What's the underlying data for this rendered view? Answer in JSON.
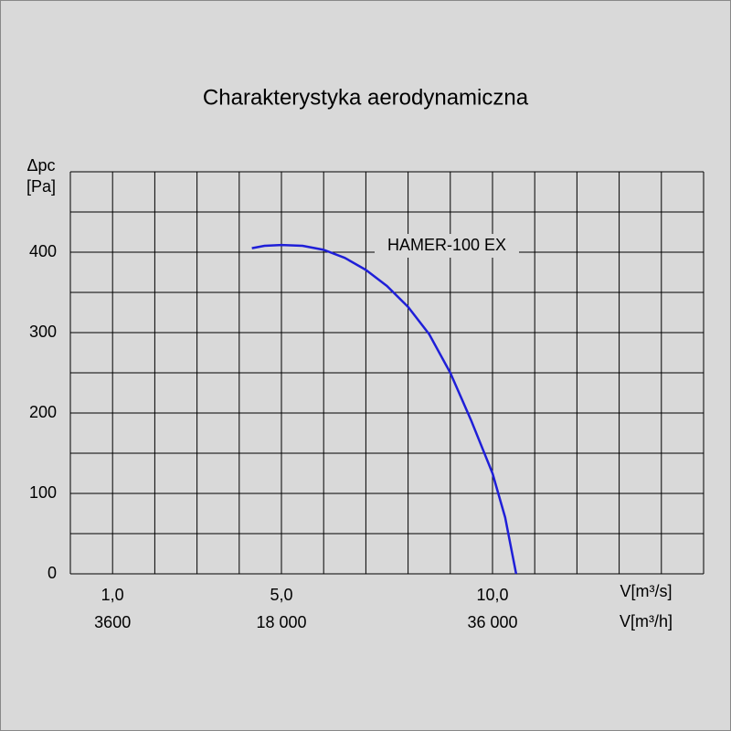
{
  "chart_data": {
    "type": "line",
    "title": "Charakterystyka aerodynamiczna",
    "y_label": [
      "Δpc",
      "[Pa]"
    ],
    "x_label": "V[m³/s]",
    "x2_label": "V[m³/h]",
    "xlim": [
      0,
      15
    ],
    "ylim": [
      0,
      500
    ],
    "xticks": [
      {
        "value": 1,
        "label": "1,0"
      },
      {
        "value": 5,
        "label": "5,0"
      },
      {
        "value": 10,
        "label": "10,0"
      }
    ],
    "x2ticks": [
      {
        "value": 1,
        "label": "3600"
      },
      {
        "value": 5,
        "label": "18 000"
      },
      {
        "value": 10,
        "label": "36 000"
      }
    ],
    "yticks": [
      0,
      100,
      200,
      300,
      400
    ],
    "xgrid": [
      0,
      1,
      2,
      3,
      4,
      5,
      6,
      7,
      8,
      9,
      10,
      11,
      12,
      13,
      14,
      15
    ],
    "ygrid": [
      0,
      50,
      100,
      150,
      200,
      250,
      300,
      350,
      400,
      450,
      500
    ],
    "series": [
      {
        "name": "HAMER-100 EX",
        "color": "#1f1fd8",
        "x": [
          4.3,
          4.6,
          5,
          5.5,
          6,
          6.5,
          7,
          7.5,
          8,
          8.5,
          9,
          9.5,
          10,
          10.3,
          10.56
        ],
        "values": [
          405,
          408,
          409,
          408,
          403,
          393,
          378,
          358,
          332,
          298,
          250,
          190,
          125,
          70,
          0
        ]
      }
    ]
  }
}
